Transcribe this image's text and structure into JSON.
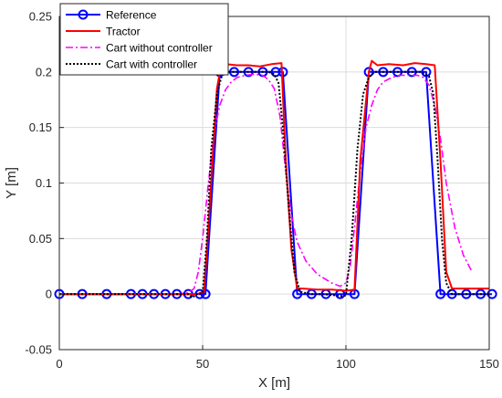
{
  "chart_data": {
    "type": "line",
    "xlabel": "X [m]",
    "ylabel": "Y [m]",
    "xlim": [
      0,
      150
    ],
    "ylim": [
      -0.05,
      0.25
    ],
    "xticks": [
      0,
      50,
      100,
      150
    ],
    "yticks": [
      -0.05,
      0,
      0.05,
      0.1,
      0.15,
      0.2,
      0.25
    ],
    "xtick_labels": [
      "0",
      "50",
      "100",
      "150"
    ],
    "ytick_labels": [
      "-0.05",
      "0",
      "0.05",
      "0.1",
      "0.15",
      "0.2",
      "0.25"
    ],
    "grid": true,
    "legend_position": "top-left",
    "series": [
      {
        "name": "Reference",
        "color": "#0000ff",
        "line_style": "solid",
        "marker": "circle",
        "x": [
          0,
          8,
          16.5,
          25,
          29,
          33,
          37,
          41,
          45,
          49,
          51,
          56,
          61,
          66,
          71,
          75.5,
          78,
          83,
          88,
          93,
          98,
          103,
          108,
          113,
          118,
          123,
          128,
          133,
          137,
          142,
          147,
          151
        ],
        "y": [
          0,
          0,
          0,
          0,
          0,
          0,
          0,
          0,
          0,
          0,
          0,
          0.2,
          0.2,
          0.2,
          0.2,
          0.2,
          0.2,
          0,
          0,
          0,
          0,
          0,
          0.2,
          0.2,
          0.2,
          0.2,
          0.2,
          0,
          0,
          0,
          0,
          0
        ]
      },
      {
        "name": "Tractor",
        "color": "#ff0000",
        "line_style": "solid",
        "marker": "none",
        "x": [
          0,
          20,
          40,
          48,
          50.5,
          52,
          55,
          56.5,
          58,
          62,
          66,
          70,
          74,
          77.5,
          79,
          81,
          83,
          85,
          90,
          95,
          100,
          103,
          105,
          108,
          109,
          111,
          115,
          120,
          124,
          128,
          131,
          133,
          135,
          137,
          140,
          145,
          150
        ],
        "y": [
          0,
          0,
          0,
          0,
          0.002,
          0.06,
          0.185,
          0.207,
          0.207,
          0.206,
          0.206,
          0.205,
          0.207,
          0.208,
          0.12,
          0.04,
          0.005,
          0.005,
          0.004,
          0.004,
          0.003,
          0.004,
          0.12,
          0.2,
          0.21,
          0.206,
          0.207,
          0.206,
          0.208,
          0.207,
          0.206,
          0.12,
          0.02,
          0.005,
          0.005,
          0.005,
          0.005
        ]
      },
      {
        "name": "Cart without controller",
        "color": "#ff00ff",
        "line_style": "dashdot",
        "marker": "none",
        "x": [
          0,
          20,
          40,
          45,
          47,
          48.5,
          50,
          52,
          54,
          56,
          58,
          60,
          62,
          65,
          68,
          71,
          73,
          75,
          77,
          79,
          81,
          83,
          86,
          90,
          95,
          98,
          100,
          101.5,
          103,
          105,
          107,
          109,
          111,
          113,
          116,
          119,
          122,
          125,
          127,
          129,
          131,
          133,
          135,
          138,
          141,
          144
        ],
        "y": [
          0,
          0,
          0,
          0.001,
          0.005,
          0.02,
          0.05,
          0.1,
          0.145,
          0.17,
          0.184,
          0.191,
          0.195,
          0.197,
          0.198,
          0.197,
          0.193,
          0.185,
          0.16,
          0.11,
          0.07,
          0.047,
          0.03,
          0.018,
          0.01,
          0.007,
          0.01,
          0.025,
          0.06,
          0.11,
          0.15,
          0.17,
          0.184,
          0.191,
          0.195,
          0.197,
          0.197,
          0.197,
          0.195,
          0.188,
          0.17,
          0.14,
          0.1,
          0.06,
          0.035,
          0.02
        ]
      },
      {
        "name": "Cart with controller",
        "color": "#000000",
        "line_style": "dotted",
        "marker": "none",
        "x": [
          0,
          20,
          40,
          45,
          46.5,
          48,
          50,
          51.5,
          53,
          55,
          56.5,
          58,
          62,
          66,
          70,
          73,
          75,
          76.5,
          78,
          80,
          82,
          84,
          88,
          92,
          96,
          99,
          100,
          102,
          104,
          106,
          108,
          110,
          114,
          118,
          122,
          126,
          129,
          130.5,
          132,
          133.5,
          135,
          137,
          140,
          145,
          150
        ],
        "y": [
          0,
          0,
          0,
          0,
          -0.003,
          0,
          0.001,
          0.05,
          0.13,
          0.18,
          0.195,
          0.2,
          0.2,
          0.2,
          0.2,
          0.2,
          0.198,
          0.19,
          0.15,
          0.08,
          0.02,
          0.002,
          0,
          0,
          -0.001,
          -0.002,
          -0.001,
          0.05,
          0.13,
          0.18,
          0.195,
          0.2,
          0.2,
          0.2,
          0.2,
          0.2,
          0.196,
          0.18,
          0.12,
          0.05,
          0.01,
          0,
          0,
          0,
          0
        ]
      }
    ]
  }
}
